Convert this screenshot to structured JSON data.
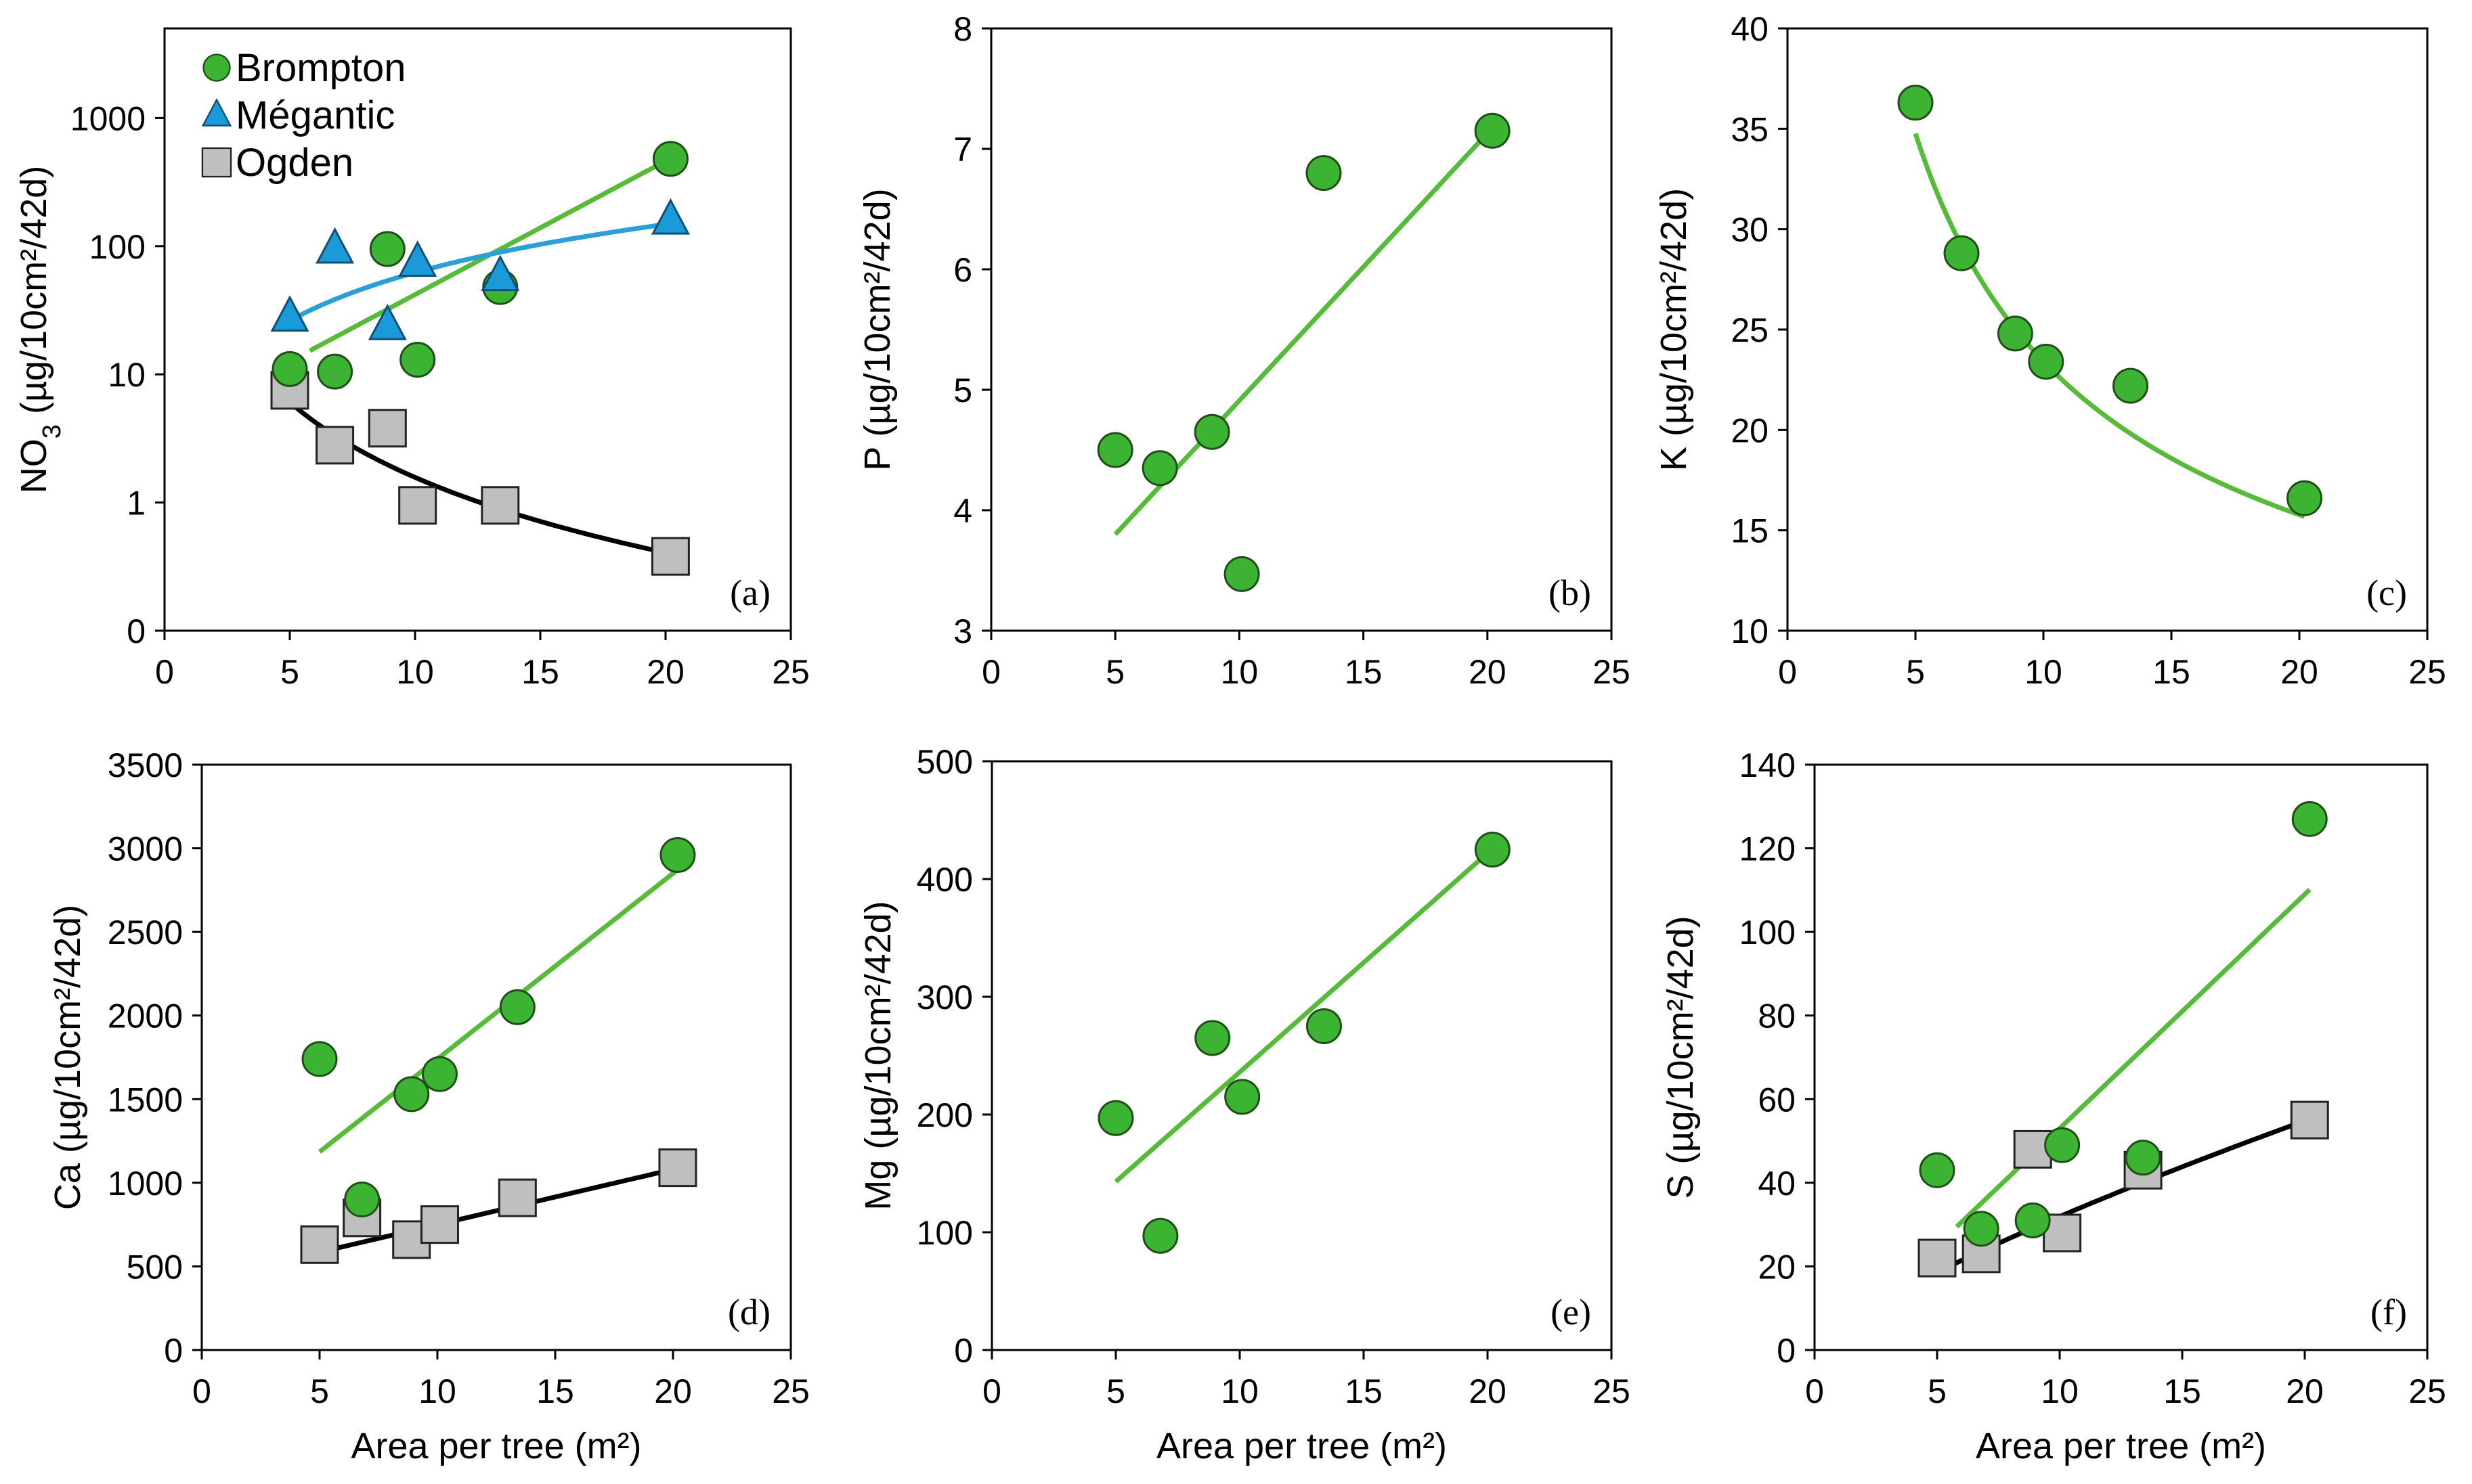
{
  "colors": {
    "brompton": "#3cb333",
    "megantic": "#1a9ad6",
    "ogden": "#bfbfbf",
    "fit_brompton": "#57bb3a",
    "fit_megantic": "#2a9fd8",
    "fit_ogden": "#000000"
  },
  "legend": [
    "Brompton",
    "Mégantic",
    "Ogden"
  ],
  "chart_data": [
    {
      "id": "a",
      "panel_label": "(a)",
      "type": "scatter",
      "yscale": "log",
      "ylabel_main": "NO",
      "ylabel_sub": "3",
      "ylabel_rest": " (µg/10cm²/42d)",
      "xlabel": "",
      "xlim": [
        0,
        25
      ],
      "xticks": [
        "0",
        "5",
        "10",
        "15",
        "20",
        "25"
      ],
      "yticks": [
        {
          "label": "0",
          "value": 0.1
        },
        {
          "label": "1",
          "value": 1
        },
        {
          "label": "10",
          "value": 10
        },
        {
          "label": "100",
          "value": 100
        },
        {
          "label": "1000",
          "value": 1000
        }
      ],
      "ylim": [
        0.1,
        5000
      ],
      "series": [
        {
          "name": "Ogden",
          "marker": "square",
          "x": [
            5.0,
            6.8,
            8.9,
            10.1,
            13.4,
            20.2
          ],
          "y": [
            7.5,
            2.8,
            3.8,
            0.95,
            0.95,
            0.38
          ]
        },
        {
          "name": "Brompton",
          "marker": "circle",
          "x": [
            5.0,
            6.8,
            8.9,
            10.1,
            13.4,
            20.2
          ],
          "y": [
            11,
            10.5,
            95,
            13,
            48,
            480
          ]
        },
        {
          "name": "Mégantic",
          "marker": "triangle",
          "x": [
            5.0,
            6.8,
            8.9,
            10.1,
            13.4,
            20.2
          ],
          "y": [
            28,
            95,
            24,
            75,
            58,
            160
          ]
        }
      ],
      "fits": [
        {
          "series": "Ogden",
          "kind": "power",
          "a": 140,
          "b": -1.95,
          "x0": 5.0,
          "x1": 20.2
        },
        {
          "series": "Brompton",
          "kind": "exp",
          "a": 3.8,
          "b": 0.24,
          "x0": 5.8,
          "x1": 20.2
        },
        {
          "series": "Mégantic",
          "kind": "power",
          "a": 3.5,
          "b": 1.25,
          "x0": 5.0,
          "x1": 20.2
        }
      ]
    },
    {
      "id": "b",
      "panel_label": "(b)",
      "type": "scatter",
      "ylabel_main": "P",
      "ylabel_sub": "",
      "ylabel_rest": " (µg/10cm²/42d)",
      "xlabel": "",
      "xlim": [
        0,
        25
      ],
      "xticks": [
        "0",
        "5",
        "10",
        "15",
        "20",
        "25"
      ],
      "ylim": [
        3,
        8
      ],
      "yticks": [
        {
          "label": "3",
          "value": 3
        },
        {
          "label": "4",
          "value": 4
        },
        {
          "label": "5",
          "value": 5
        },
        {
          "label": "6",
          "value": 6
        },
        {
          "label": "7",
          "value": 7
        },
        {
          "label": "8",
          "value": 8
        }
      ],
      "series": [
        {
          "name": "Brompton",
          "marker": "circle",
          "x": [
            5.0,
            6.8,
            8.9,
            10.1,
            13.4,
            20.2
          ],
          "y": [
            4.5,
            4.35,
            4.65,
            3.47,
            6.8,
            7.15
          ]
        }
      ],
      "fits": [
        {
          "series": "Brompton",
          "kind": "linear",
          "a": 2.69,
          "b": 0.222,
          "x0": 5.0,
          "x1": 20.2
        }
      ]
    },
    {
      "id": "c",
      "panel_label": "(c)",
      "type": "scatter",
      "ylabel_main": "K",
      "ylabel_sub": "",
      "ylabel_rest": " (µg/10cm²/42d)",
      "xlabel": "",
      "xlim": [
        0,
        25
      ],
      "xticks": [
        "0",
        "5",
        "10",
        "15",
        "20",
        "25"
      ],
      "ylim": [
        10,
        40
      ],
      "yticks": [
        {
          "label": "10",
          "value": 10
        },
        {
          "label": "15",
          "value": 15
        },
        {
          "label": "20",
          "value": 20
        },
        {
          "label": "25",
          "value": 25
        },
        {
          "label": "30",
          "value": 30
        },
        {
          "label": "35",
          "value": 35
        },
        {
          "label": "40",
          "value": 40
        }
      ],
      "series": [
        {
          "name": "Brompton",
          "marker": "circle",
          "x": [
            5.0,
            6.8,
            8.9,
            10.1,
            13.4,
            20.2
          ],
          "y": [
            36.3,
            28.8,
            24.8,
            23.4,
            22.2,
            16.6
          ]
        }
      ],
      "fits": [
        {
          "series": "Brompton",
          "kind": "power",
          "a": 87,
          "b": -0.57,
          "x0": 5.0,
          "x1": 20.2
        }
      ]
    },
    {
      "id": "d",
      "panel_label": "(d)",
      "type": "scatter",
      "ylabel_main": "Ca",
      "ylabel_sub": "",
      "ylabel_rest": " (µg/10cm²/42d)",
      "xlabel": "Area per tree (m²)",
      "xlim": [
        0,
        25
      ],
      "xticks": [
        "0",
        "5",
        "10",
        "15",
        "20",
        "25"
      ],
      "ylim": [
        0,
        3500
      ],
      "yticks": [
        {
          "label": "0",
          "value": 0
        },
        {
          "label": "500",
          "value": 500
        },
        {
          "label": "1000",
          "value": 1000
        },
        {
          "label": "1500",
          "value": 1500
        },
        {
          "label": "2000",
          "value": 2000
        },
        {
          "label": "2500",
          "value": 2500
        },
        {
          "label": "3000",
          "value": 3000
        },
        {
          "label": "3500",
          "value": 3500
        }
      ],
      "series": [
        {
          "name": "Ogden",
          "marker": "square",
          "x": [
            5.0,
            6.8,
            8.9,
            10.1,
            13.4,
            20.2
          ],
          "y": [
            630,
            790,
            660,
            750,
            910,
            1090
          ]
        },
        {
          "name": "Brompton",
          "marker": "circle",
          "x": [
            5.0,
            6.8,
            8.9,
            10.1,
            13.4,
            20.2
          ],
          "y": [
            1740,
            900,
            1530,
            1650,
            2050,
            2960
          ]
        }
      ],
      "fits": [
        {
          "series": "Brompton",
          "kind": "linear",
          "a": 630,
          "b": 111,
          "x0": 5.0,
          "x1": 20.2
        },
        {
          "series": "Ogden",
          "kind": "linear",
          "a": 420,
          "b": 33,
          "x0": 5.0,
          "x1": 20.2
        }
      ]
    },
    {
      "id": "e",
      "panel_label": "(e)",
      "type": "scatter",
      "ylabel_main": "Mg",
      "ylabel_sub": "",
      "ylabel_rest": " (µg/10cm²/42d)",
      "xlabel": "Area per tree (m²)",
      "xlim": [
        0,
        25
      ],
      "xticks": [
        "0",
        "5",
        "10",
        "15",
        "20",
        "25"
      ],
      "ylim": [
        0,
        500
      ],
      "yticks": [
        {
          "label": "0",
          "value": 0
        },
        {
          "label": "100",
          "value": 100
        },
        {
          "label": "200",
          "value": 200
        },
        {
          "label": "300",
          "value": 300
        },
        {
          "label": "400",
          "value": 400
        },
        {
          "label": "500",
          "value": 500
        }
      ],
      "series": [
        {
          "name": "Brompton",
          "marker": "circle",
          "x": [
            5.0,
            6.8,
            8.9,
            10.1,
            13.4,
            20.2
          ],
          "y": [
            197,
            97,
            265,
            215,
            275,
            425
          ]
        }
      ],
      "fits": [
        {
          "series": "Brompton",
          "kind": "linear",
          "a": 50,
          "b": 18.6,
          "x0": 5.0,
          "x1": 20.2
        }
      ]
    },
    {
      "id": "f",
      "panel_label": "(f)",
      "type": "scatter",
      "ylabel_main": "S",
      "ylabel_sub": "",
      "ylabel_rest": " (µg/10cm²/42d)",
      "xlabel": "Area per tree (m²)",
      "xlim": [
        0,
        25
      ],
      "xticks": [
        "0",
        "5",
        "10",
        "15",
        "20",
        "25"
      ],
      "ylim": [
        0,
        140
      ],
      "yticks": [
        {
          "label": "0",
          "value": 0
        },
        {
          "label": "20",
          "value": 20
        },
        {
          "label": "40",
          "value": 40
        },
        {
          "label": "60",
          "value": 60
        },
        {
          "label": "80",
          "value": 80
        },
        {
          "label": "100",
          "value": 100
        },
        {
          "label": "120",
          "value": 120
        },
        {
          "label": "140",
          "value": 140
        }
      ],
      "series": [
        {
          "name": "Ogden",
          "marker": "square",
          "x": [
            5.0,
            6.8,
            8.9,
            10.1,
            13.4,
            20.2
          ],
          "y": [
            22,
            23,
            48,
            28,
            43,
            55
          ]
        },
        {
          "name": "Brompton",
          "marker": "circle",
          "x": [
            5.0,
            6.8,
            8.9,
            10.1,
            13.4,
            20.2
          ],
          "y": [
            43,
            29,
            31,
            49,
            46,
            127
          ]
        }
      ],
      "fits": [
        {
          "series": "Brompton",
          "kind": "linear",
          "a": -3,
          "b": 5.6,
          "x0": 5.8,
          "x1": 20.2
        },
        {
          "series": "Ogden",
          "kind": "power",
          "a": 5.3,
          "b": 0.78,
          "x0": 5.0,
          "x1": 20.2
        }
      ]
    }
  ]
}
